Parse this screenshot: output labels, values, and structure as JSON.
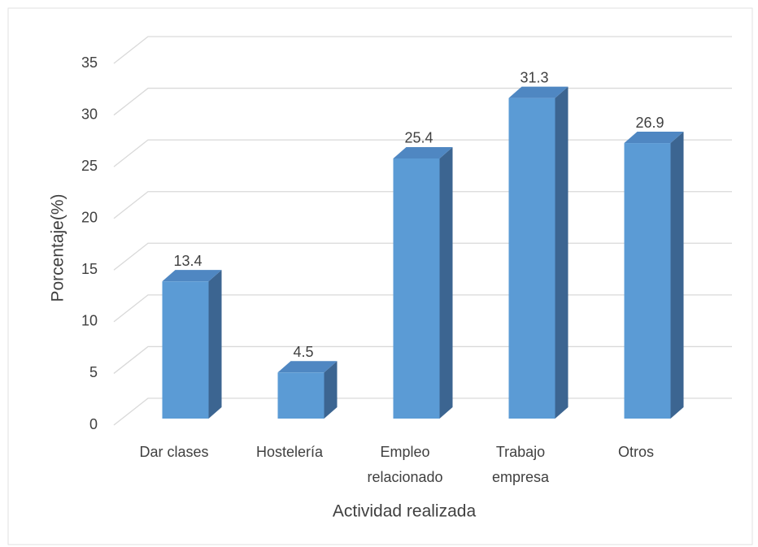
{
  "chart_data": {
    "type": "bar3d",
    "categories": [
      [
        "Dar clases"
      ],
      [
        "Hostelería"
      ],
      [
        "Empleo",
        "relacionado"
      ],
      [
        "Trabajo",
        "empresa"
      ],
      [
        "Otros"
      ]
    ],
    "values": [
      13.4,
      4.5,
      25.4,
      31.3,
      26.9
    ],
    "color": "#5b9bd5",
    "ylim": [
      0,
      35
    ],
    "yticks": [
      0,
      5,
      10,
      15,
      20,
      25,
      30,
      35
    ],
    "grid": true,
    "y_label": "Porcentaje(%)",
    "x_label": "Actividad realizada"
  }
}
